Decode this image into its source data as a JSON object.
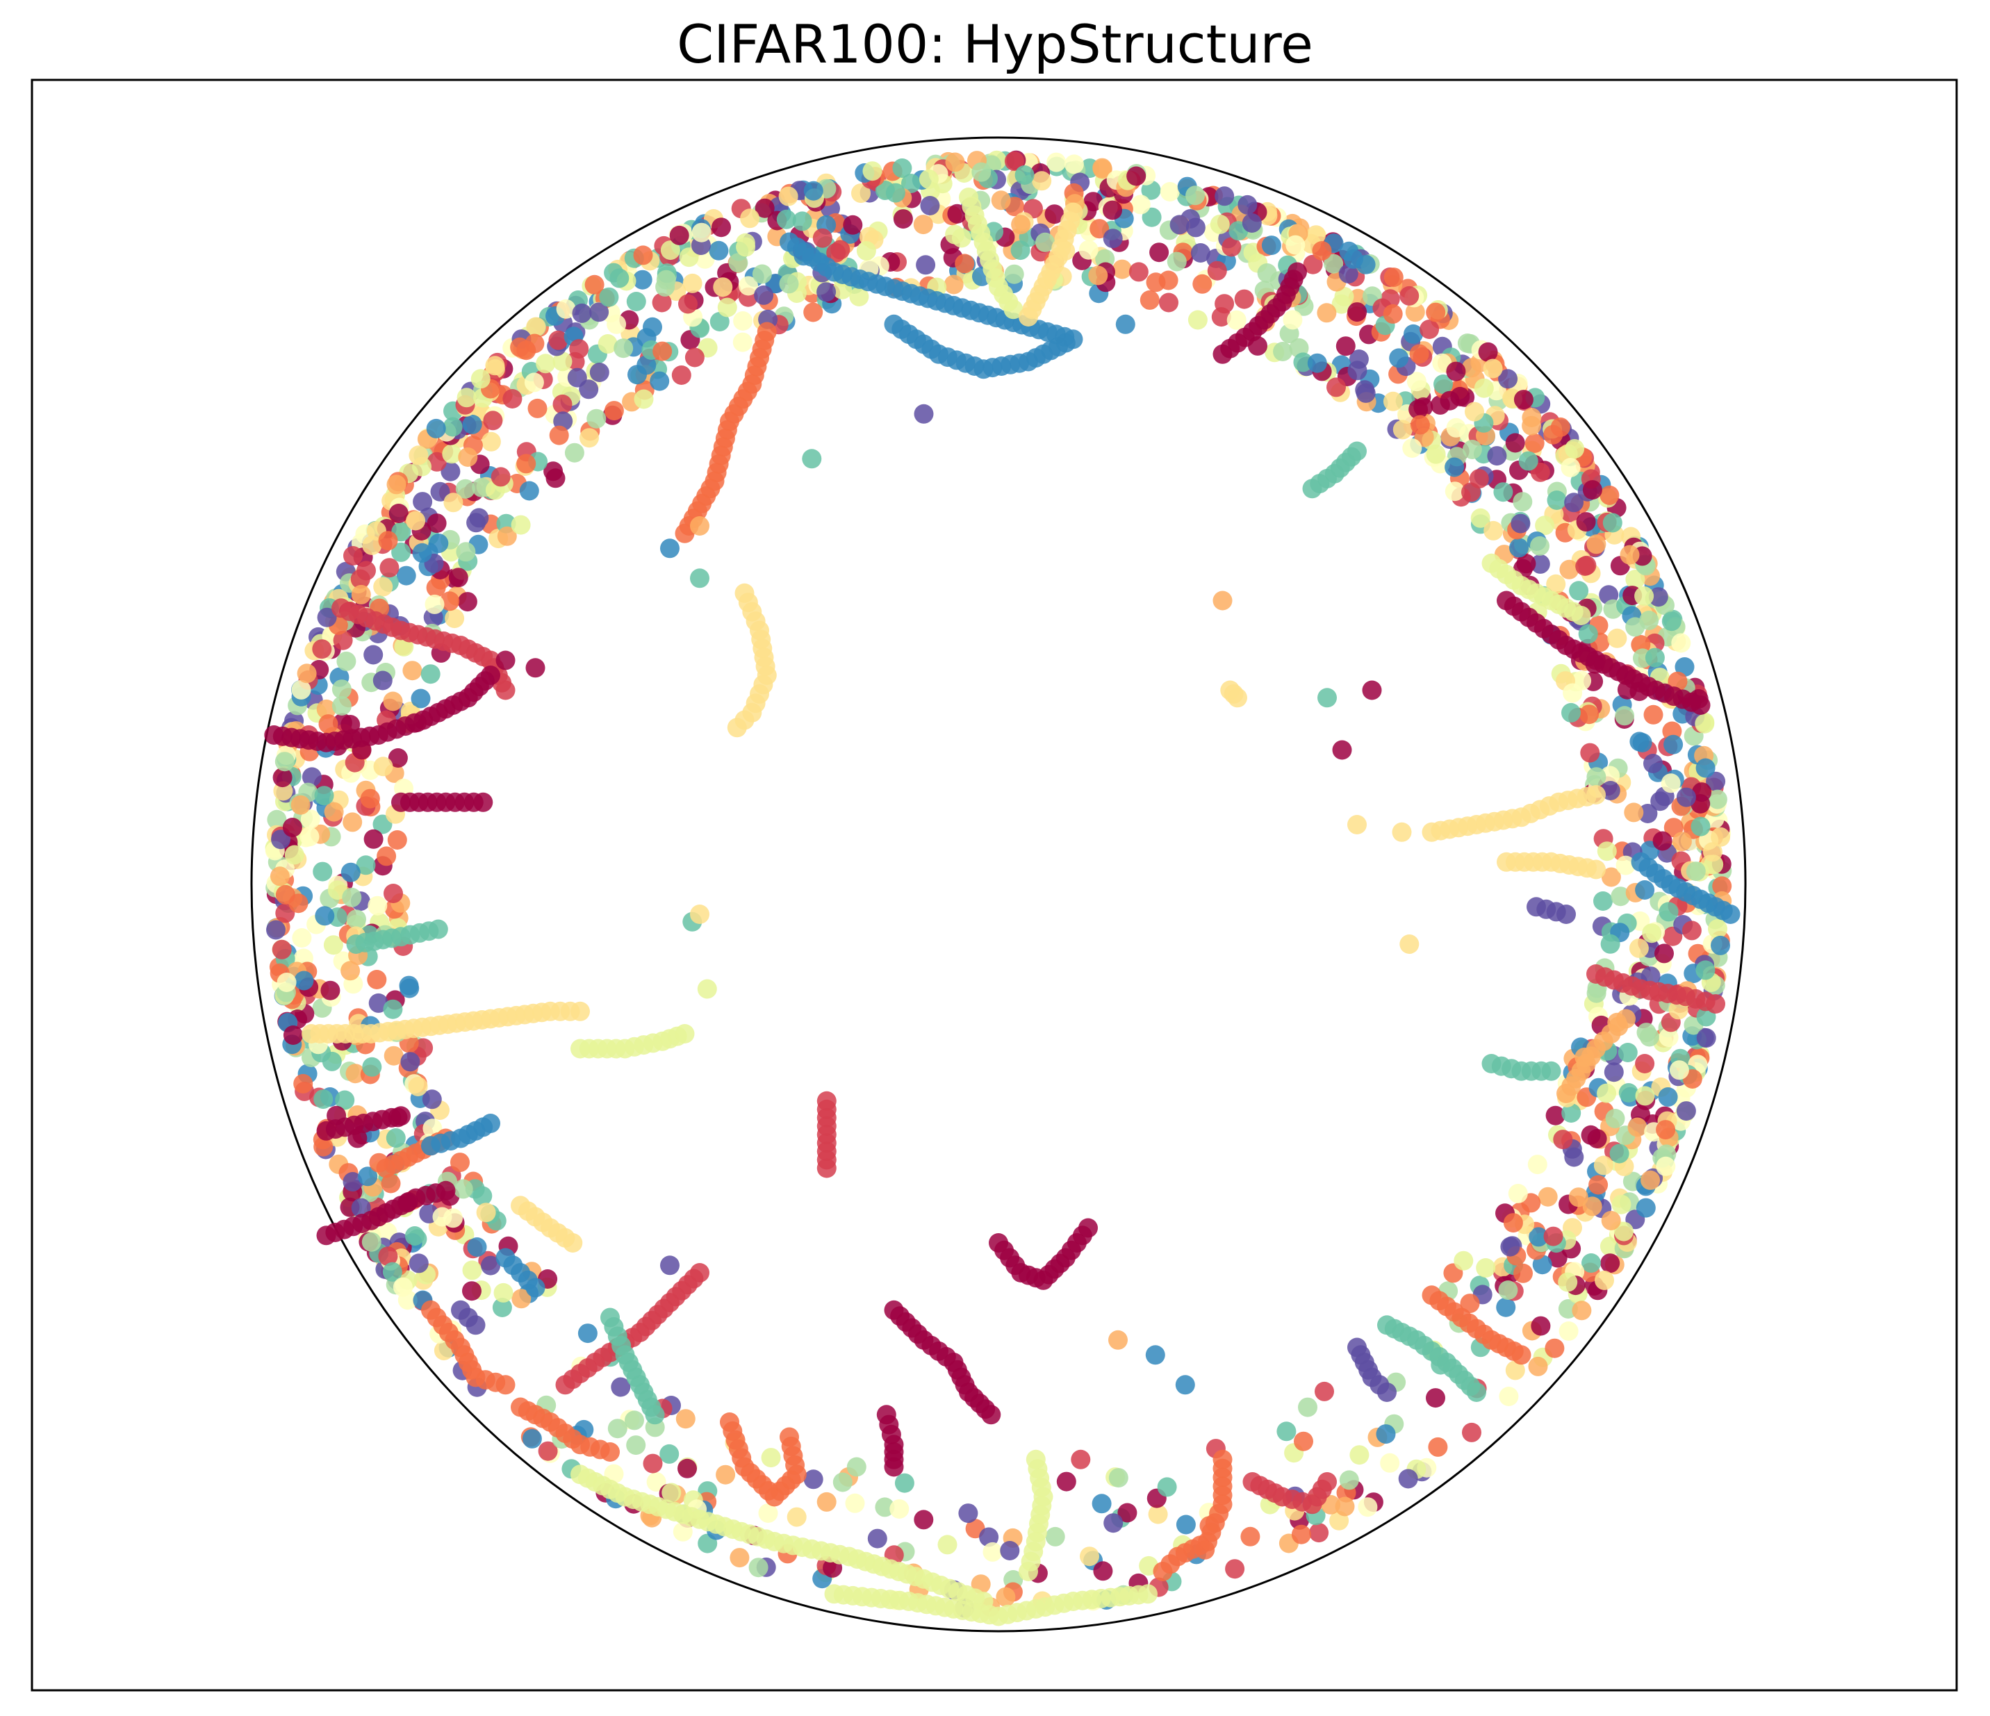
{
  "chart_data": {
    "type": "scatter",
    "title": "CIFAR100: HypStructure",
    "xlabel": "",
    "ylabel": "",
    "xlim": [
      -1.05,
      1.05
    ],
    "ylim": [
      -1.05,
      1.05
    ],
    "ticks": "none",
    "grid": false,
    "boundary": "unit-circle",
    "colormap": "Spectral",
    "palette": [
      "#9e0142",
      "#d53e4f",
      "#f46d43",
      "#fdae61",
      "#fee08b",
      "#ffffbf",
      "#e6f598",
      "#abdda4",
      "#66c2a5",
      "#3288bd",
      "#5e4fa2"
    ],
    "clusters": [
      {
        "color": "#d53e4f",
        "points": [
          [
            -0.88,
            0.37
          ],
          [
            -0.8,
            0.34
          ],
          [
            -0.72,
            0.32
          ],
          [
            -0.68,
            0.3
          ],
          [
            -0.66,
            0.26
          ]
        ]
      },
      {
        "color": "#9e0142",
        "points": [
          [
            -0.97,
            0.2
          ],
          [
            -0.9,
            0.19
          ],
          [
            -0.83,
            0.2
          ],
          [
            -0.77,
            0.22
          ],
          [
            -0.71,
            0.25
          ],
          [
            -0.68,
            0.28
          ]
        ]
      },
      {
        "color": "#9e0142",
        "points": [
          [
            -0.8,
            0.11
          ],
          [
            -0.74,
            0.11
          ],
          [
            -0.69,
            0.11
          ]
        ]
      },
      {
        "color": "#66c2a5",
        "points": [
          [
            -0.86,
            -0.08
          ],
          [
            -0.8,
            -0.07
          ],
          [
            -0.75,
            -0.06
          ]
        ]
      },
      {
        "color": "#fee08b",
        "points": [
          [
            -0.92,
            -0.2
          ],
          [
            -0.84,
            -0.2
          ],
          [
            -0.76,
            -0.19
          ],
          [
            -0.68,
            -0.18
          ],
          [
            -0.6,
            -0.17
          ],
          [
            -0.56,
            -0.17
          ]
        ]
      },
      {
        "color": "#e6f598",
        "points": [
          [
            -0.56,
            -0.22
          ],
          [
            -0.5,
            -0.22
          ],
          [
            -0.45,
            -0.21
          ],
          [
            -0.42,
            -0.2
          ]
        ]
      },
      {
        "color": "#9e0142",
        "points": [
          [
            -0.9,
            -0.33
          ],
          [
            -0.85,
            -0.32
          ],
          [
            -0.8,
            -0.31
          ]
        ]
      },
      {
        "color": "#9e0142",
        "points": [
          [
            -0.9,
            -0.47
          ],
          [
            -0.84,
            -0.45
          ],
          [
            -0.78,
            -0.42
          ],
          [
            -0.74,
            -0.41
          ]
        ]
      },
      {
        "color": "#f46d43",
        "points": [
          [
            -0.82,
            -0.38
          ],
          [
            -0.78,
            -0.36
          ],
          [
            -0.74,
            -0.34
          ]
        ]
      },
      {
        "color": "#3288bd",
        "points": [
          [
            -0.76,
            -0.35
          ],
          [
            -0.72,
            -0.34
          ],
          [
            -0.68,
            -0.32
          ]
        ]
      },
      {
        "color": "#fee08b",
        "points": [
          [
            -0.64,
            -0.43
          ],
          [
            -0.6,
            -0.46
          ],
          [
            -0.57,
            -0.48
          ]
        ]
      },
      {
        "color": "#f46d43",
        "points": [
          [
            -0.76,
            -0.57
          ],
          [
            -0.72,
            -0.62
          ],
          [
            -0.7,
            -0.66
          ],
          [
            -0.66,
            -0.67
          ]
        ]
      },
      {
        "color": "#f46d43",
        "points": [
          [
            -0.64,
            -0.7
          ],
          [
            -0.6,
            -0.72
          ],
          [
            -0.56,
            -0.75
          ],
          [
            -0.52,
            -0.76
          ]
        ]
      },
      {
        "color": "#3288bd",
        "points": [
          [
            -0.66,
            -0.5
          ],
          [
            -0.64,
            -0.52
          ],
          [
            -0.62,
            -0.54
          ]
        ]
      },
      {
        "color": "#5e4fa2",
        "points": [
          [
            -0.72,
            -0.57
          ],
          [
            -0.7,
            -0.59
          ]
        ]
      },
      {
        "color": "#e6f598",
        "points": [
          [
            -0.56,
            -0.79
          ],
          [
            -0.5,
            -0.82
          ],
          [
            -0.4,
            -0.85
          ],
          [
            -0.3,
            -0.88
          ],
          [
            -0.2,
            -0.9
          ],
          [
            -0.1,
            -0.93
          ],
          [
            -0.02,
            -0.96
          ]
        ]
      },
      {
        "color": "#e6f598",
        "points": [
          [
            -0.22,
            -0.95
          ],
          [
            -0.12,
            -0.96
          ],
          [
            0.0,
            -0.98
          ],
          [
            0.1,
            -0.96
          ],
          [
            0.2,
            -0.95
          ]
        ]
      },
      {
        "color": "#f46d43",
        "points": [
          [
            -0.36,
            -0.72
          ],
          [
            -0.34,
            -0.78
          ],
          [
            -0.3,
            -0.82
          ],
          [
            -0.27,
            -0.79
          ],
          [
            -0.28,
            -0.74
          ]
        ]
      },
      {
        "color": "#9e0142",
        "points": [
          [
            -0.14,
            -0.57
          ],
          [
            -0.1,
            -0.61
          ],
          [
            -0.06,
            -0.64
          ],
          [
            -0.04,
            -0.68
          ],
          [
            -0.01,
            -0.71
          ]
        ]
      },
      {
        "color": "#9e0142",
        "points": [
          [
            -0.15,
            -0.71
          ],
          [
            -0.14,
            -0.75
          ],
          [
            -0.14,
            -0.78
          ]
        ]
      },
      {
        "color": "#9e0142",
        "points": [
          [
            0.0,
            -0.48
          ],
          [
            0.03,
            -0.52
          ],
          [
            0.06,
            -0.53
          ],
          [
            0.09,
            -0.5
          ],
          [
            0.12,
            -0.46
          ]
        ]
      },
      {
        "color": "#d53e4f",
        "points": [
          [
            -0.23,
            -0.29
          ],
          [
            -0.23,
            -0.38
          ]
        ]
      },
      {
        "color": "#d53e4f",
        "points": [
          [
            -0.4,
            -0.52
          ],
          [
            -0.44,
            -0.56
          ],
          [
            -0.48,
            -0.6
          ],
          [
            -0.54,
            -0.64
          ],
          [
            -0.58,
            -0.67
          ]
        ]
      },
      {
        "color": "#66c2a5",
        "points": [
          [
            -0.52,
            -0.58
          ],
          [
            -0.5,
            -0.63
          ],
          [
            -0.48,
            -0.67
          ],
          [
            -0.46,
            -0.71
          ]
        ]
      },
      {
        "color": "#3288bd",
        "points": [
          [
            -0.14,
            0.75
          ],
          [
            -0.08,
            0.71
          ],
          [
            -0.02,
            0.69
          ],
          [
            0.04,
            0.7
          ],
          [
            0.1,
            0.73
          ],
          [
            -0.22,
            0.82
          ],
          [
            -0.28,
            0.86
          ]
        ]
      },
      {
        "color": "#fee08b",
        "points": [
          [
            -0.34,
            0.39
          ],
          [
            -0.32,
            0.34
          ],
          [
            -0.31,
            0.28
          ],
          [
            -0.33,
            0.23
          ],
          [
            -0.35,
            0.21
          ]
        ]
      },
      {
        "color": "#f46d43",
        "points": [
          [
            -0.31,
            0.74
          ],
          [
            -0.33,
            0.67
          ],
          [
            -0.36,
            0.62
          ],
          [
            -0.38,
            0.54
          ],
          [
            -0.42,
            0.47
          ]
        ]
      },
      {
        "color": "#e6f598",
        "points": [
          [
            -0.04,
            0.92
          ],
          [
            -0.02,
            0.86
          ],
          [
            0.0,
            0.8
          ],
          [
            0.02,
            0.77
          ]
        ]
      },
      {
        "color": "#fee08b",
        "points": [
          [
            0.1,
            0.9
          ],
          [
            0.08,
            0.84
          ],
          [
            0.06,
            0.8
          ],
          [
            0.04,
            0.76
          ]
        ]
      },
      {
        "color": "#9e0142",
        "points": [
          [
            0.3,
            0.71
          ],
          [
            0.34,
            0.74
          ],
          [
            0.38,
            0.78
          ],
          [
            0.4,
            0.82
          ]
        ]
      },
      {
        "color": "#66c2a5",
        "points": [
          [
            0.42,
            0.53
          ],
          [
            0.45,
            0.55
          ],
          [
            0.48,
            0.58
          ]
        ]
      },
      {
        "color": "#9e0142",
        "points": [
          [
            0.68,
            0.38
          ],
          [
            0.72,
            0.35
          ],
          [
            0.76,
            0.32
          ],
          [
            0.82,
            0.29
          ],
          [
            0.88,
            0.26
          ],
          [
            0.94,
            0.24
          ]
        ]
      },
      {
        "color": "#e6f598",
        "points": [
          [
            0.66,
            0.43
          ],
          [
            0.7,
            0.4
          ],
          [
            0.74,
            0.38
          ],
          [
            0.78,
            0.36
          ]
        ]
      },
      {
        "color": "#fee08b",
        "points": [
          [
            0.58,
            0.07
          ],
          [
            0.64,
            0.08
          ],
          [
            0.7,
            0.09
          ],
          [
            0.75,
            0.11
          ],
          [
            0.8,
            0.12
          ]
        ]
      },
      {
        "color": "#fee08b",
        "points": [
          [
            0.68,
            0.03
          ],
          [
            0.74,
            0.03
          ],
          [
            0.8,
            0.02
          ]
        ]
      },
      {
        "color": "#5e4fa2",
        "points": [
          [
            0.72,
            -0.03
          ],
          [
            0.76,
            -0.04
          ]
        ]
      },
      {
        "color": "#3288bd",
        "points": [
          [
            0.86,
            0.03
          ],
          [
            0.9,
            0.0
          ],
          [
            0.94,
            -0.02
          ],
          [
            0.98,
            -0.04
          ]
        ]
      },
      {
        "color": "#d53e4f",
        "points": [
          [
            0.8,
            -0.12
          ],
          [
            0.86,
            -0.14
          ],
          [
            0.92,
            -0.15
          ],
          [
            0.96,
            -0.16
          ]
        ]
      },
      {
        "color": "#fdae61",
        "points": [
          [
            0.76,
            -0.28
          ],
          [
            0.78,
            -0.25
          ],
          [
            0.8,
            -0.22
          ],
          [
            0.82,
            -0.2
          ],
          [
            0.84,
            -0.18
          ]
        ]
      },
      {
        "color": "#66c2a5",
        "points": [
          [
            0.66,
            -0.24
          ],
          [
            0.7,
            -0.25
          ],
          [
            0.74,
            -0.25
          ]
        ]
      },
      {
        "color": "#f46d43",
        "points": [
          [
            0.58,
            -0.55
          ],
          [
            0.62,
            -0.58
          ],
          [
            0.66,
            -0.61
          ],
          [
            0.7,
            -0.63
          ]
        ]
      },
      {
        "color": "#66c2a5",
        "points": [
          [
            0.52,
            -0.59
          ],
          [
            0.56,
            -0.61
          ],
          [
            0.6,
            -0.64
          ],
          [
            0.64,
            -0.68
          ]
        ]
      },
      {
        "color": "#5e4fa2",
        "points": [
          [
            0.48,
            -0.62
          ],
          [
            0.5,
            -0.66
          ],
          [
            0.52,
            -0.68
          ]
        ]
      },
      {
        "color": "#f46d43",
        "points": [
          [
            0.3,
            -0.77
          ],
          [
            0.3,
            -0.83
          ],
          [
            0.28,
            -0.88
          ],
          [
            0.24,
            -0.9
          ],
          [
            0.22,
            -0.92
          ]
        ]
      },
      {
        "color": "#d53e4f",
        "points": [
          [
            0.34,
            -0.8
          ],
          [
            0.38,
            -0.82
          ],
          [
            0.42,
            -0.83
          ],
          [
            0.44,
            -0.8
          ]
        ]
      },
      {
        "color": "#e6f598",
        "points": [
          [
            0.05,
            -0.77
          ],
          [
            0.06,
            -0.82
          ],
          [
            0.05,
            -0.88
          ],
          [
            0.04,
            -0.92
          ]
        ]
      },
      {
        "color": "#fdae61",
        "points": [
          [
            -0.4,
            0.48
          ]
        ]
      },
      {
        "color": "#fdae61",
        "points": [
          [
            0.3,
            0.38
          ]
        ]
      },
      {
        "color": "#fee08b",
        "points": [
          [
            0.31,
            0.26
          ],
          [
            0.32,
            0.25
          ]
        ]
      },
      {
        "color": "#66c2a5",
        "points": [
          [
            0.44,
            0.25
          ]
        ]
      },
      {
        "color": "#9e0142",
        "points": [
          [
            0.5,
            0.26
          ]
        ]
      },
      {
        "color": "#9e0142",
        "points": [
          [
            0.46,
            0.18
          ]
        ]
      },
      {
        "color": "#fee08b",
        "points": [
          [
            0.48,
            0.08
          ]
        ]
      },
      {
        "color": "#fee08b",
        "points": [
          [
            0.54,
            0.07
          ]
        ]
      },
      {
        "color": "#fee08b",
        "points": [
          [
            0.55,
            -0.08
          ]
        ]
      },
      {
        "color": "#66c2a5",
        "points": [
          [
            -0.41,
            -0.05
          ]
        ]
      },
      {
        "color": "#e6f598",
        "points": [
          [
            -0.39,
            -0.14
          ]
        ]
      },
      {
        "color": "#fee08b",
        "points": [
          [
            -0.4,
            -0.04
          ]
        ]
      },
      {
        "color": "#9e0142",
        "points": [
          [
            -0.66,
            0.3
          ]
        ]
      },
      {
        "color": "#9e0142",
        "points": [
          [
            -0.62,
            0.29
          ]
        ]
      },
      {
        "color": "#3288bd",
        "points": [
          [
            -0.44,
            0.45
          ]
        ]
      },
      {
        "color": "#66c2a5",
        "points": [
          [
            -0.4,
            0.41
          ]
        ]
      },
      {
        "color": "#3288bd",
        "points": [
          [
            0.17,
            0.75
          ]
        ]
      },
      {
        "color": "#5e4fa2",
        "points": [
          [
            -0.1,
            0.63
          ]
        ]
      },
      {
        "color": "#66c2a5",
        "points": [
          [
            -0.25,
            0.57
          ]
        ]
      },
      {
        "color": "#fdae61",
        "points": [
          [
            0.16,
            -0.61
          ]
        ]
      },
      {
        "color": "#3288bd",
        "points": [
          [
            0.21,
            -0.63
          ]
        ]
      },
      {
        "color": "#3288bd",
        "points": [
          [
            0.25,
            -0.67
          ]
        ]
      },
      {
        "color": "#d53e4f",
        "points": [
          [
            0.11,
            -0.77
          ]
        ]
      },
      {
        "color": "#abdda4",
        "points": [
          [
            -0.19,
            -0.78
          ]
        ]
      },
      {
        "color": "#5e4fa2",
        "points": [
          [
            -0.44,
            -0.51
          ]
        ]
      }
    ],
    "rim_colors": [
      "#9e0142",
      "#d53e4f",
      "#f46d43",
      "#fdae61",
      "#fee08b",
      "#ffffbf",
      "#e6f598",
      "#abdda4",
      "#66c2a5",
      "#3288bd",
      "#5e4fa2"
    ]
  }
}
